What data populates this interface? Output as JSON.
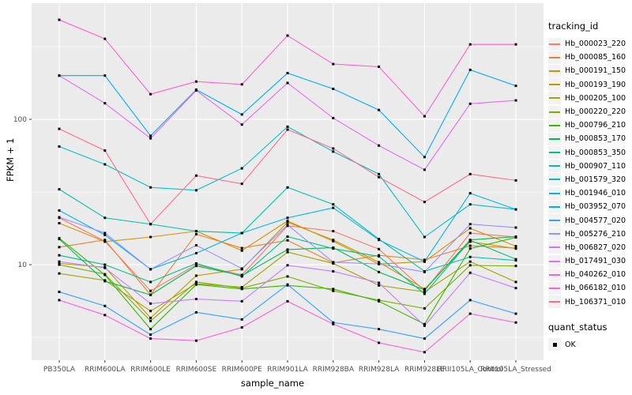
{
  "figure": {
    "y_axis_title": "FPKM + 1",
    "x_axis_title": "sample_name",
    "legend": {
      "tracking_title": "tracking_id",
      "quant_title": "quant_status",
      "quant_label": "OK"
    },
    "colors": {
      "panel_background": "#EBEBEB",
      "gridline": "#FFFFFF",
      "axis_text": "#4D4D4D",
      "tick_mark": "#333333",
      "point": "#000000",
      "legend_key_background": "#F2F2F2"
    }
  },
  "chart_data": {
    "type": "line",
    "title": "",
    "xlabel": "sample_name",
    "ylabel": "FPKM + 1",
    "yscale": "log10",
    "ylim": [
      2.2,
      630
    ],
    "yticks": [
      {
        "label": "10",
        "value": 10
      },
      {
        "label": "100",
        "value": 100
      }
    ],
    "minor_gridlines": [
      3.162,
      31.62,
      316.2
    ],
    "grid": true,
    "legend_position": "right",
    "legend_titles": [
      "tracking_id",
      "quant_status"
    ],
    "quant_status": "OK",
    "x": [
      "PB350LA",
      "RRIM600LA",
      "RRIM600LE",
      "RRIM600SE",
      "RRIM600PE",
      "RRIM901LA",
      "RRIM928BA",
      "RRIM928LA",
      "RRIM928LE",
      "RRII105LA_Control",
      "RRII105LA_Stressed"
    ],
    "series": [
      {
        "name": "Hb_000023_220",
        "color": "#F8766D",
        "values": [
          21,
          14.5,
          6.6,
          10,
          8.5,
          18.5,
          17,
          12.8,
          6.6,
          16.5,
          15.5
        ]
      },
      {
        "name": "Hb_000085_160",
        "color": "#EA8331",
        "values": [
          13.2,
          14.8,
          6.2,
          16.2,
          13,
          14.7,
          10.3,
          11.6,
          10.8,
          13.5,
          13
        ]
      },
      {
        "name": "Hb_000191_150",
        "color": "#D89000",
        "values": [
          19.3,
          14.4,
          15.5,
          17,
          12.5,
          20,
          14.5,
          10.1,
          10.5,
          17.8,
          13.4
        ]
      },
      {
        "name": "Hb_000193_190",
        "color": "#C09B00",
        "values": [
          10.2,
          9.6,
          4.3,
          8.4,
          9.3,
          19.6,
          14.8,
          10.4,
          6.8,
          14.4,
          12.9
        ]
      },
      {
        "name": "Hb_000205_100",
        "color": "#A3A500",
        "values": [
          8.7,
          7.8,
          4.8,
          7.4,
          7,
          12.2,
          10.2,
          7.2,
          6.5,
          10.5,
          7.6
        ]
      },
      {
        "name": "Hb_000220_220",
        "color": "#7CAE00",
        "values": [
          10,
          8.6,
          4.1,
          7.6,
          6.9,
          8.3,
          6.6,
          5.7,
          5,
          9.9,
          9.8
        ]
      },
      {
        "name": "Hb_000796_210",
        "color": "#39B600",
        "values": [
          15.2,
          8.5,
          3.6,
          7.3,
          6.8,
          7.2,
          6.8,
          5.6,
          3.9,
          12.9,
          15.4
        ]
      },
      {
        "name": "Hb_000853_170",
        "color": "#00BB4E",
        "values": [
          15,
          7.7,
          6.2,
          9.8,
          8.4,
          12.7,
          13.1,
          8.9,
          6.7,
          14.8,
          15.6
        ]
      },
      {
        "name": "Hb_000853_350",
        "color": "#00C087",
        "values": [
          11.6,
          10,
          7.6,
          10.2,
          8.3,
          15.6,
          12.9,
          11.4,
          6.3,
          14.7,
          10.9
        ]
      },
      {
        "name": "Hb_000907_110",
        "color": "#00C1A9",
        "values": [
          33,
          21,
          19,
          17,
          16.5,
          34,
          26,
          15,
          9,
          11.3,
          10.7
        ]
      },
      {
        "name": "Hb_001579_320",
        "color": "#00BFC4",
        "values": [
          65,
          49,
          34,
          32.5,
          46,
          89,
          60,
          42,
          15.5,
          26,
          24
        ]
      },
      {
        "name": "Hb_001946_010",
        "color": "#00B8E5",
        "values": [
          23.6,
          16,
          9.3,
          12,
          16.5,
          21,
          24.6,
          14.8,
          10.5,
          31,
          24
        ]
      },
      {
        "name": "Hb_003952_070",
        "color": "#00ACFC",
        "values": [
          200,
          200,
          77,
          160,
          108,
          208,
          162,
          116,
          55,
          219,
          170
        ]
      },
      {
        "name": "Hb_004577_020",
        "color": "#35A2FF",
        "values": [
          6.5,
          5.2,
          3.3,
          4.7,
          4.2,
          7.3,
          4,
          3.6,
          3.1,
          5.7,
          4.6
        ]
      },
      {
        "name": "Hb_005276_210",
        "color": "#9590FF",
        "values": [
          21.2,
          16.5,
          9.3,
          13.6,
          9.4,
          18.8,
          10.4,
          10.1,
          8.9,
          19,
          18
        ]
      },
      {
        "name": "Hb_006827_020",
        "color": "#C77CFF",
        "values": [
          10.5,
          9.5,
          5.4,
          5.8,
          5.6,
          9.9,
          9,
          7.5,
          3.8,
          8.8,
          6.9
        ]
      },
      {
        "name": "Hb_017491_030",
        "color": "#E76BF3",
        "values": [
          200,
          129,
          74,
          158,
          92,
          178,
          102,
          66,
          45,
          128,
          135
        ]
      },
      {
        "name": "Hb_040262_010",
        "color": "#FA62DB",
        "values": [
          5.7,
          4.5,
          3.1,
          3,
          3.7,
          5.6,
          3.9,
          2.9,
          2.5,
          4.6,
          4
        ]
      },
      {
        "name": "Hb_066182_010",
        "color": "#FF61CC",
        "values": [
          484,
          358,
          149,
          182,
          174,
          377,
          240,
          230,
          105,
          328,
          328
        ]
      },
      {
        "name": "Hb_106371_010",
        "color": "#FF6C90",
        "values": [
          86,
          61,
          19,
          41,
          36,
          85,
          63,
          40,
          27,
          42,
          38
        ]
      }
    ]
  }
}
